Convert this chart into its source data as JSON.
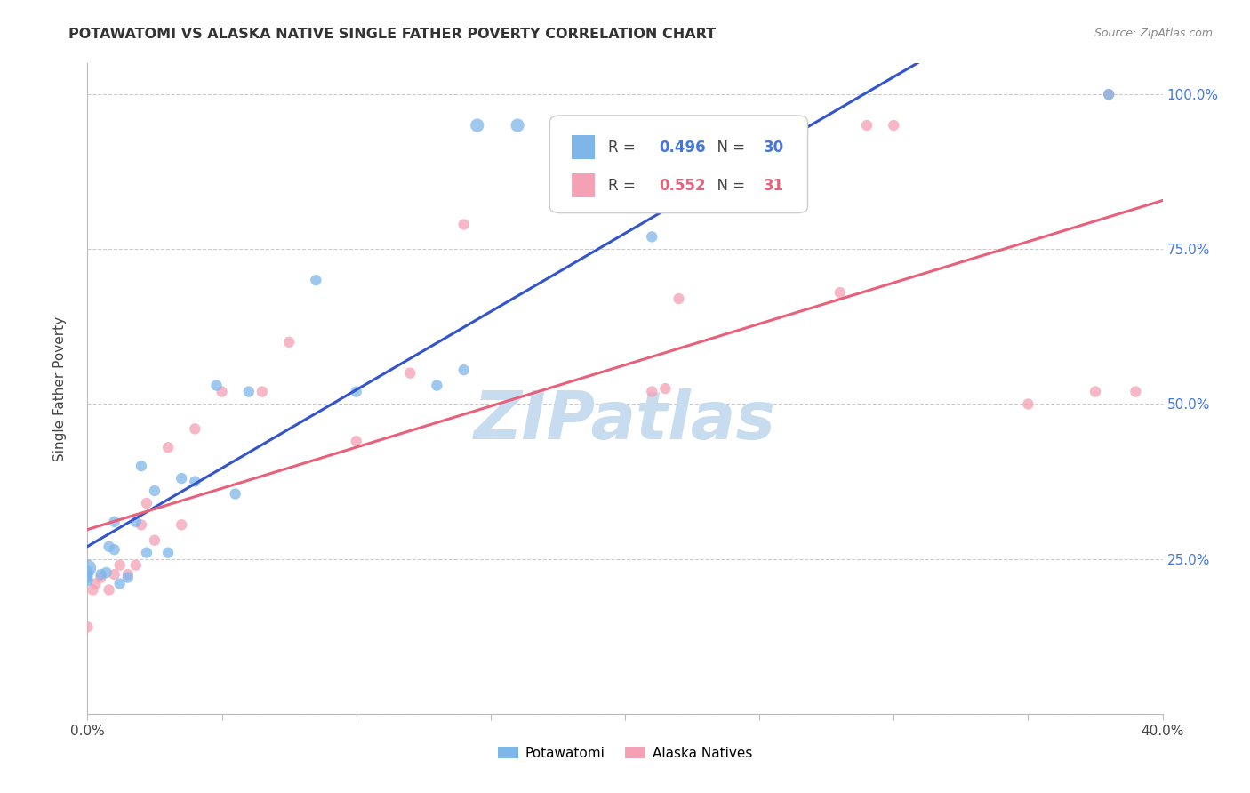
{
  "title": "POTAWATOMI VS ALASKA NATIVE SINGLE FATHER POVERTY CORRELATION CHART",
  "source": "Source: ZipAtlas.com",
  "ylabel": "Single Father Poverty",
  "xlim": [
    0.0,
    0.4
  ],
  "ylim": [
    0.0,
    1.05
  ],
  "x_ticks": [
    0.0,
    0.05,
    0.1,
    0.15,
    0.2,
    0.25,
    0.3,
    0.35,
    0.4
  ],
  "y_ticks": [
    0.0,
    0.25,
    0.5,
    0.75,
    1.0
  ],
  "y_tick_labels": [
    "",
    "25.0%",
    "50.0%",
    "75.0%",
    "100.0%"
  ],
  "potawatomi_color": "#7EB6E8",
  "alaska_color": "#F4A0B5",
  "line_blue": "#3355CC",
  "line_pink": "#E8607A",
  "watermark_color": "#C8DCF0",
  "legend_r_blue": "0.496",
  "legend_n_blue": "30",
  "legend_r_pink": "0.552",
  "legend_n_pink": "31",
  "potawatomi_x": [
    0.0,
    0.0,
    0.0,
    0.0,
    0.0,
    0.005,
    0.007,
    0.008,
    0.01,
    0.01,
    0.012,
    0.015,
    0.018,
    0.02,
    0.022,
    0.025,
    0.03,
    0.035,
    0.04,
    0.048,
    0.055,
    0.06,
    0.085,
    0.1,
    0.13,
    0.14,
    0.145,
    0.16,
    0.21,
    0.38
  ],
  "potawatomi_y": [
    0.215,
    0.22,
    0.225,
    0.23,
    0.235,
    0.225,
    0.228,
    0.27,
    0.265,
    0.31,
    0.21,
    0.22,
    0.31,
    0.4,
    0.26,
    0.36,
    0.26,
    0.38,
    0.375,
    0.53,
    0.355,
    0.52,
    0.7,
    0.52,
    0.53,
    0.555,
    0.95,
    0.95,
    0.77,
    1.0
  ],
  "potawatomi_size": [
    8,
    8,
    8,
    8,
    20,
    8,
    8,
    8,
    8,
    8,
    8,
    8,
    8,
    8,
    8,
    8,
    8,
    8,
    8,
    8,
    8,
    8,
    8,
    8,
    8,
    8,
    12,
    12,
    8,
    8
  ],
  "alaska_x": [
    0.0,
    0.002,
    0.003,
    0.005,
    0.008,
    0.01,
    0.012,
    0.015,
    0.018,
    0.02,
    0.022,
    0.025,
    0.03,
    0.035,
    0.04,
    0.05,
    0.065,
    0.075,
    0.1,
    0.12,
    0.14,
    0.21,
    0.215,
    0.22,
    0.28,
    0.29,
    0.3,
    0.35,
    0.375,
    0.38,
    0.39
  ],
  "alaska_y": [
    0.14,
    0.2,
    0.21,
    0.22,
    0.2,
    0.225,
    0.24,
    0.225,
    0.24,
    0.305,
    0.34,
    0.28,
    0.43,
    0.305,
    0.46,
    0.52,
    0.52,
    0.6,
    0.44,
    0.55,
    0.79,
    0.52,
    0.525,
    0.67,
    0.68,
    0.95,
    0.95,
    0.5,
    0.52,
    1.0,
    0.52
  ],
  "alaska_size": [
    8,
    8,
    8,
    8,
    8,
    8,
    8,
    8,
    8,
    8,
    8,
    8,
    8,
    8,
    8,
    8,
    8,
    8,
    8,
    8,
    8,
    8,
    8,
    8,
    8,
    8,
    8,
    8,
    8,
    8,
    8
  ]
}
